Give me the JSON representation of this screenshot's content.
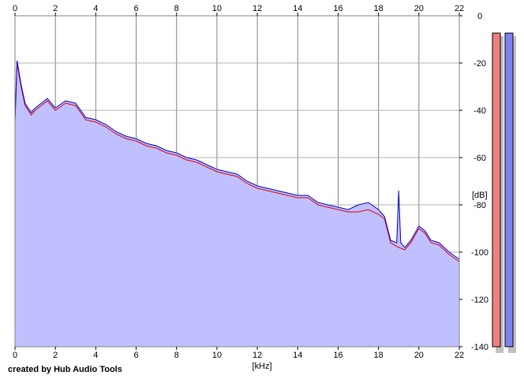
{
  "chart_data": {
    "type": "area",
    "title": "",
    "xlabel": "[kHz]",
    "ylabel": "[dB]",
    "xlim": [
      0,
      22
    ],
    "ylim": [
      -140,
      0
    ],
    "x_ticks": [
      0,
      2,
      4,
      6,
      8,
      10,
      12,
      14,
      16,
      18,
      20,
      22
    ],
    "y_ticks": [
      0,
      -20,
      -40,
      -60,
      -80,
      -100,
      -120,
      -140
    ],
    "grid": true,
    "legend": "none",
    "series": [
      {
        "color": "#e00000",
        "points": [
          [
            0,
            -45
          ],
          [
            0.1,
            -20
          ],
          [
            0.3,
            -30
          ],
          [
            0.5,
            -38
          ],
          [
            0.8,
            -42
          ],
          [
            1.0,
            -40
          ],
          [
            1.3,
            -38
          ],
          [
            1.6,
            -36
          ],
          [
            2.0,
            -40
          ],
          [
            2.5,
            -37
          ],
          [
            3.0,
            -38
          ],
          [
            3.5,
            -44
          ],
          [
            4.0,
            -45
          ],
          [
            4.5,
            -47
          ],
          [
            5.0,
            -50
          ],
          [
            5.5,
            -52
          ],
          [
            6.0,
            -53
          ],
          [
            6.5,
            -55
          ],
          [
            7.0,
            -56
          ],
          [
            7.5,
            -58
          ],
          [
            8.0,
            -59
          ],
          [
            8.5,
            -61
          ],
          [
            9.0,
            -62
          ],
          [
            9.5,
            -64
          ],
          [
            10.0,
            -66
          ],
          [
            10.5,
            -67
          ],
          [
            11.0,
            -68
          ],
          [
            11.5,
            -71
          ],
          [
            12.0,
            -73
          ],
          [
            12.5,
            -74
          ],
          [
            13.0,
            -75
          ],
          [
            13.5,
            -76
          ],
          [
            14.0,
            -77
          ],
          [
            14.5,
            -77
          ],
          [
            15.0,
            -80
          ],
          [
            15.5,
            -81
          ],
          [
            16.0,
            -82
          ],
          [
            16.5,
            -83
          ],
          [
            17.0,
            -83
          ],
          [
            17.5,
            -82
          ],
          [
            18.0,
            -84
          ],
          [
            18.3,
            -86
          ],
          [
            18.6,
            -96
          ],
          [
            19.0,
            -98
          ],
          [
            19.3,
            -99
          ],
          [
            19.6,
            -96
          ],
          [
            20.0,
            -90
          ],
          [
            20.3,
            -92
          ],
          [
            20.6,
            -96
          ],
          [
            21.0,
            -97
          ],
          [
            21.5,
            -101
          ],
          [
            22.0,
            -104
          ]
        ]
      },
      {
        "color": "#0000cc",
        "points": [
          [
            0,
            -44
          ],
          [
            0.1,
            -19
          ],
          [
            0.3,
            -29
          ],
          [
            0.5,
            -37
          ],
          [
            0.8,
            -41
          ],
          [
            1.0,
            -39
          ],
          [
            1.3,
            -37
          ],
          [
            1.6,
            -35
          ],
          [
            2.0,
            -39
          ],
          [
            2.5,
            -36
          ],
          [
            3.0,
            -37
          ],
          [
            3.5,
            -43
          ],
          [
            4.0,
            -44
          ],
          [
            4.5,
            -46
          ],
          [
            5.0,
            -49
          ],
          [
            5.5,
            -51
          ],
          [
            6.0,
            -52
          ],
          [
            6.5,
            -54
          ],
          [
            7.0,
            -55
          ],
          [
            7.5,
            -57
          ],
          [
            8.0,
            -58
          ],
          [
            8.5,
            -60
          ],
          [
            9.0,
            -61
          ],
          [
            9.5,
            -63
          ],
          [
            10.0,
            -65
          ],
          [
            10.5,
            -66
          ],
          [
            11.0,
            -67
          ],
          [
            11.5,
            -70
          ],
          [
            12.0,
            -72
          ],
          [
            12.5,
            -73
          ],
          [
            13.0,
            -74
          ],
          [
            13.5,
            -75
          ],
          [
            14.0,
            -76
          ],
          [
            14.5,
            -76
          ],
          [
            15.0,
            -79
          ],
          [
            15.5,
            -80
          ],
          [
            16.0,
            -81
          ],
          [
            16.5,
            -82
          ],
          [
            17.0,
            -80
          ],
          [
            17.5,
            -79
          ],
          [
            18.0,
            -82
          ],
          [
            18.3,
            -85
          ],
          [
            18.6,
            -95
          ],
          [
            18.9,
            -96
          ],
          [
            19.0,
            -74
          ],
          [
            19.1,
            -96
          ],
          [
            19.3,
            -98
          ],
          [
            19.6,
            -95
          ],
          [
            20.0,
            -89
          ],
          [
            20.3,
            -91
          ],
          [
            20.6,
            -95
          ],
          [
            21.0,
            -96
          ],
          [
            21.5,
            -100
          ],
          [
            22.0,
            -103
          ]
        ]
      }
    ],
    "level_meters": [
      {
        "color": "#f08080",
        "level_db": -140
      },
      {
        "color": "#8080f0",
        "level_db": -140
      }
    ],
    "fill_color": "#c0c0ff"
  },
  "credit": "created by Hub Audio Tools"
}
